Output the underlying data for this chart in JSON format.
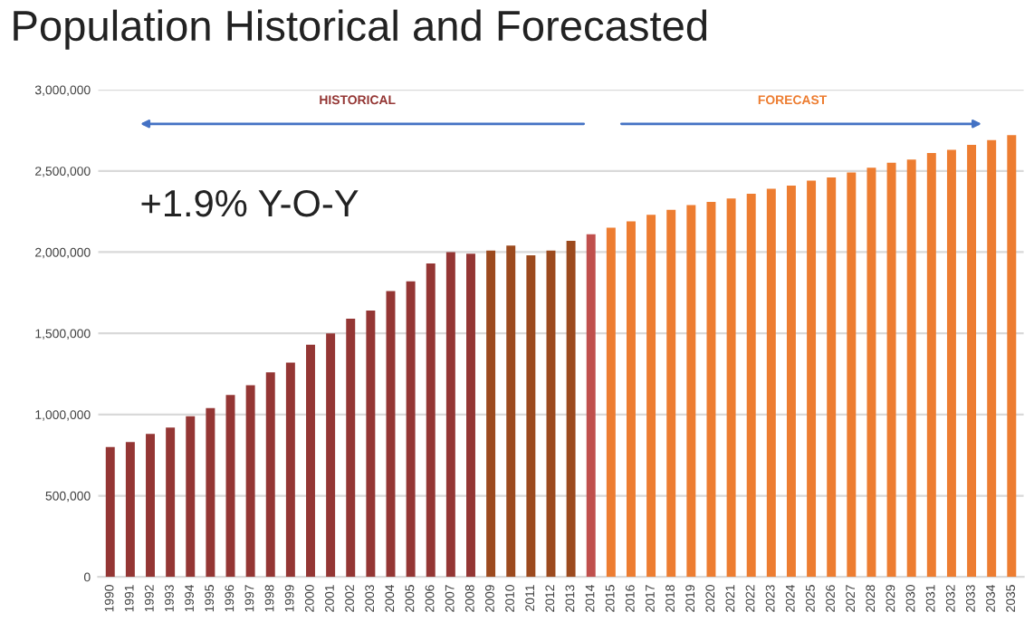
{
  "chart_data": {
    "type": "bar",
    "title": "Population Historical and Forecasted",
    "categories": [
      "1990",
      "1991",
      "1992",
      "1993",
      "1994",
      "1995",
      "1996",
      "1997",
      "1998",
      "1999",
      "2000",
      "2001",
      "2002",
      "2003",
      "2004",
      "2005",
      "2006",
      "2007",
      "2008",
      "2009",
      "2010",
      "2011",
      "2012",
      "2013",
      "2014",
      "2015",
      "2016",
      "2017",
      "2018",
      "2019",
      "2020",
      "2021",
      "2022",
      "2023",
      "2024",
      "2025",
      "2026",
      "2027",
      "2028",
      "2029",
      "2030",
      "2031",
      "2032",
      "2033",
      "2034",
      "2035"
    ],
    "values": [
      800000,
      830000,
      880000,
      920000,
      990000,
      1040000,
      1120000,
      1180000,
      1260000,
      1320000,
      1430000,
      1500000,
      1590000,
      1640000,
      1760000,
      1820000,
      1930000,
      2000000,
      1990000,
      2010000,
      2040000,
      1980000,
      2010000,
      2070000,
      2110000,
      2150000,
      2190000,
      2230000,
      2260000,
      2290000,
      2310000,
      2330000,
      2360000,
      2390000,
      2410000,
      2440000,
      2460000,
      2490000,
      2520000,
      2550000,
      2570000,
      2610000,
      2630000,
      2660000,
      2690000,
      2720000
    ],
    "colors": [
      "#943634",
      "#943634",
      "#943634",
      "#943634",
      "#943634",
      "#943634",
      "#943634",
      "#943634",
      "#943634",
      "#943634",
      "#943634",
      "#943634",
      "#943634",
      "#943634",
      "#943634",
      "#943634",
      "#943634",
      "#943634",
      "#943634",
      "#9c4a1e",
      "#9c4a1e",
      "#9c4a1e",
      "#9c4a1e",
      "#9c4a1e",
      "#c0504d",
      "#ed7d31",
      "#ed7d31",
      "#ed7d31",
      "#ed7d31",
      "#ed7d31",
      "#ed7d31",
      "#ed7d31",
      "#ed7d31",
      "#ed7d31",
      "#ed7d31",
      "#ed7d31",
      "#ed7d31",
      "#ed7d31",
      "#ed7d31",
      "#ed7d31",
      "#ed7d31",
      "#ed7d31",
      "#ed7d31",
      "#ed7d31",
      "#ed7d31",
      "#ed7d31"
    ],
    "ylim": [
      0,
      3000000
    ],
    "yticks": [
      0,
      {
        "value": 500000,
        "label": "500,000"
      },
      {
        "value": 1000000,
        "label": "1,000,000"
      },
      {
        "value": 1500000,
        "label": "1,500,000"
      },
      {
        "value": 2000000,
        "label": "2,000,000"
      },
      {
        "value": 2500000,
        "label": "2,500,000"
      },
      {
        "value": 3000000,
        "label": "3,000,000"
      }
    ],
    "grid": "y",
    "annotations": [
      "HISTORICAL",
      "FORECAST",
      "+1.9% Y-O-Y"
    ]
  }
}
